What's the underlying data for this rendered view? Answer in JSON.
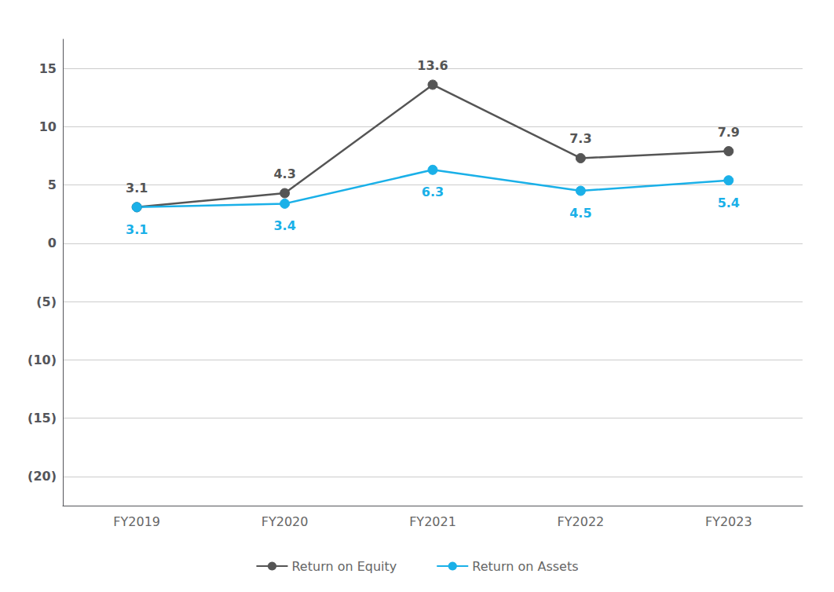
{
  "chart_data": {
    "type": "line",
    "categories": [
      "FY2019",
      "FY2020",
      "FY2021",
      "FY2022",
      "FY2023"
    ],
    "series": [
      {
        "name": "Return on Equity",
        "color": "#555555",
        "values": [
          3.1,
          4.3,
          13.6,
          7.3,
          7.9
        ]
      },
      {
        "name": "Return on Assets",
        "color": "#1ab0e8",
        "values": [
          3.1,
          3.4,
          6.3,
          4.5,
          5.4
        ]
      }
    ],
    "ylim": [
      -22.5,
      17.5
    ],
    "yticks": [
      15,
      10,
      5,
      0,
      {
        "value": -5,
        "label": "(5)"
      },
      {
        "value": -10,
        "label": "(10)"
      },
      {
        "value": -15,
        "label": "(15)"
      },
      {
        "value": -20,
        "label": "(20)"
      }
    ],
    "grid": true,
    "legend": "bottom",
    "marker": "circle",
    "data_labels": true
  }
}
